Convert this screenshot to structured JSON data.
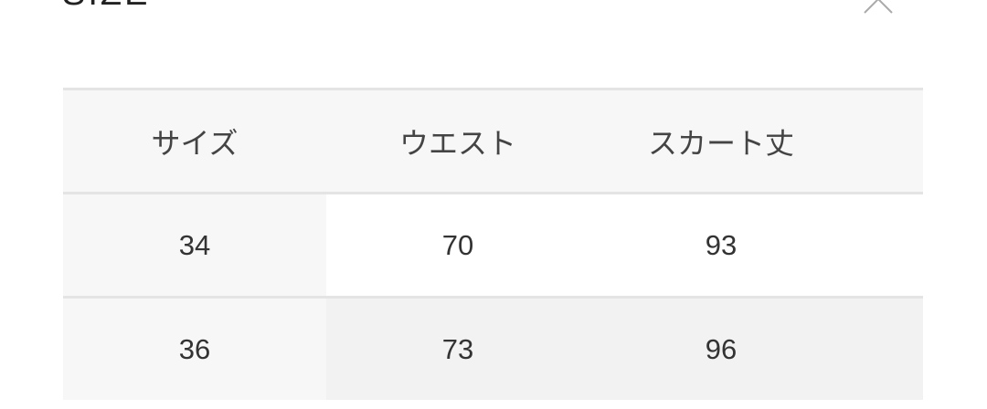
{
  "title": "SIZE",
  "close_icon": "close-x-icon",
  "table": {
    "headers": [
      "サイズ",
      "ウエスト",
      "スカート丈"
    ],
    "rows": [
      [
        "34",
        "70",
        "93"
      ],
      [
        "36",
        "73",
        "96"
      ]
    ]
  }
}
